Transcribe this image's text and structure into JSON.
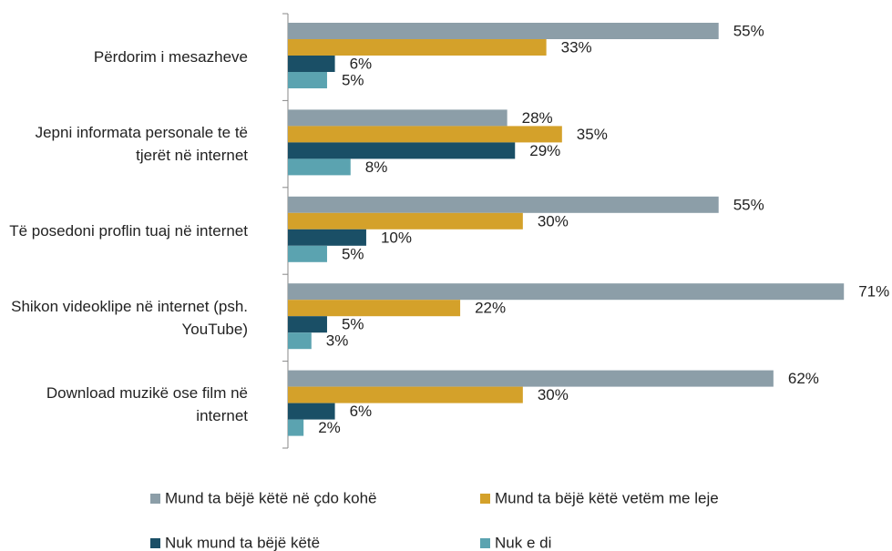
{
  "chart_data": {
    "type": "hbar",
    "categories": [
      "Përdorim i mesazheve",
      "Jepni informata personale te të tjerët në internet",
      "Të posedoni proflin tuaj në internet",
      "Shikon videoklipe në internet (psh. YouTube)",
      "Download muzikë ose film në internet"
    ],
    "series": [
      {
        "name": "Mund ta bëjë këtë në çdo kohë",
        "color": "#8c9ea8",
        "values": [
          55,
          28,
          55,
          71,
          62
        ],
        "value_labels": [
          "55%",
          "28%",
          "55%",
          "71%",
          "62%"
        ]
      },
      {
        "name": "Mund ta bëjë këtë vetëm me leje",
        "color": "#d4a12a",
        "values": [
          33,
          35,
          30,
          22,
          30
        ],
        "value_labels": [
          "33%",
          "35%",
          "30%",
          "22%",
          "30%"
        ]
      },
      {
        "name": "Nuk mund ta bëjë këtë",
        "color": "#1a4f66",
        "values": [
          6,
          29,
          10,
          5,
          6
        ],
        "value_labels": [
          "6%",
          "29%",
          "10%",
          "5%",
          "6%"
        ]
      },
      {
        "name": "Nuk e di",
        "color": "#5ba3b0",
        "values": [
          5,
          8,
          5,
          3,
          2
        ],
        "value_labels": [
          "5%",
          "8%",
          "5%",
          "3%",
          "2%"
        ]
      }
    ],
    "xlim": [
      0,
      74
    ]
  }
}
